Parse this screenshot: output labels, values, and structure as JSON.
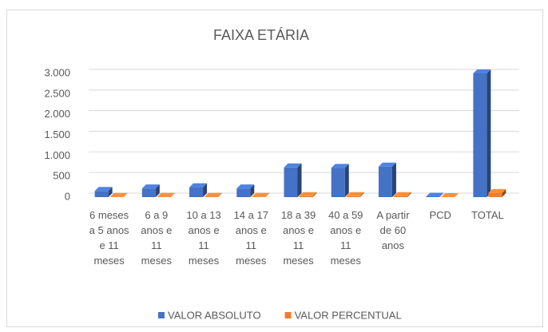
{
  "chart_data": {
    "type": "bar3d",
    "title": "FAIXA ETÁRIA",
    "categories": [
      "6 meses a 5 anos e 11 meses",
      "6 a 9 anos e 11 meses",
      "10 a 13 anos e 11 meses",
      "14 a 17 anos e 11 meses",
      "18 a 39 anos e 11 meses",
      "40 a 59 anos e 11 meses",
      "A partir de 60 anos",
      "PCD",
      "TOTAL"
    ],
    "series": [
      {
        "name": "VALOR ABSOLUTO",
        "color": "#4472c4",
        "values": [
          150,
          210,
          240,
          210,
          720,
          710,
          740,
          10,
          3000
        ]
      },
      {
        "name": "VALOR PERCENTUAL",
        "color": "#ed7d31",
        "values": [
          5,
          7,
          8,
          7,
          24,
          24,
          25,
          0,
          100
        ]
      }
    ],
    "ylim": [
      0,
      3000
    ],
    "yticks": [
      0,
      500,
      {
        "value": 1000,
        "label": "1.000"
      },
      {
        "value": 1500,
        "label": "1.500"
      },
      {
        "value": 2000,
        "label": "2.000"
      },
      {
        "value": 2500,
        "label": "2.500"
      },
      {
        "value": 3000,
        "label": "3.000"
      }
    ],
    "grid": true,
    "legend": "bottom"
  }
}
